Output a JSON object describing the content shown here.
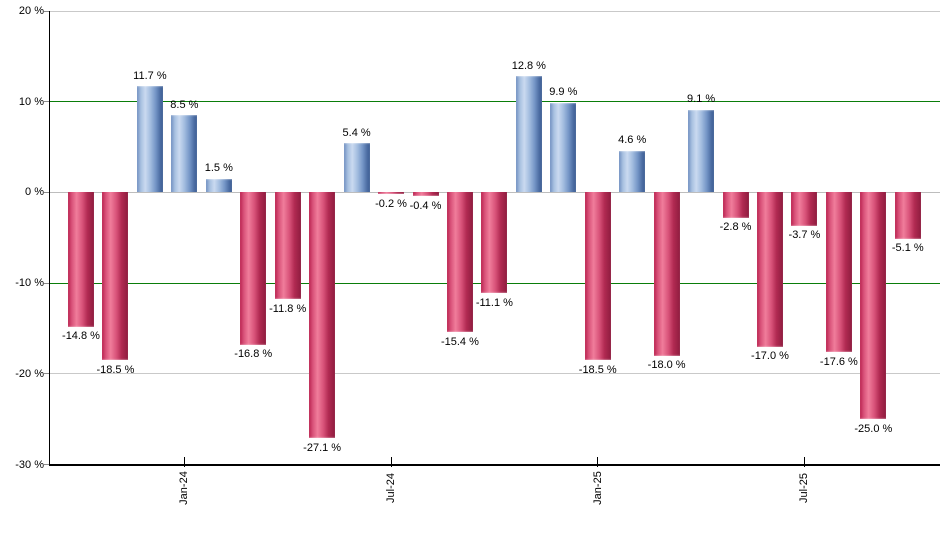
{
  "chart_data": {
    "type": "bar",
    "title": "",
    "xlabel": "",
    "ylabel": "",
    "ylim": [
      -30,
      20
    ],
    "grid": "horizontal",
    "legend_position": "none",
    "y_ticks": [
      {
        "value": 20,
        "label": "20 %",
        "line": "gray"
      },
      {
        "value": 10,
        "label": "10 %",
        "line": "green"
      },
      {
        "value": 0,
        "label": "0 %",
        "line": "zero"
      },
      {
        "value": -10,
        "label": "-10 %",
        "line": "green"
      },
      {
        "value": -20,
        "label": "-20 %",
        "line": "gray"
      },
      {
        "value": -30,
        "label": "-30 %",
        "line": "axis"
      }
    ],
    "x_ticks": [
      {
        "bar_index": 3,
        "label": "Jan-24"
      },
      {
        "bar_index": 9,
        "label": "Jul-24"
      },
      {
        "bar_index": 15,
        "label": "Jan-25"
      },
      {
        "bar_index": 21,
        "label": "Jul-25"
      }
    ],
    "bars": [
      {
        "value": -14.8,
        "label": "-14.8 %"
      },
      {
        "value": -18.5,
        "label": "-18.5 %"
      },
      {
        "value": 11.7,
        "label": "11.7 %"
      },
      {
        "value": 8.5,
        "label": "8.5 %"
      },
      {
        "value": 1.5,
        "label": "1.5 %"
      },
      {
        "value": -16.8,
        "label": "-16.8 %"
      },
      {
        "value": -11.8,
        "label": "-11.8 %"
      },
      {
        "value": -27.1,
        "label": "-27.1 %"
      },
      {
        "value": 5.4,
        "label": "5.4 %"
      },
      {
        "value": -0.2,
        "label": "-0.2 %"
      },
      {
        "value": -0.4,
        "label": "-0.4 %"
      },
      {
        "value": -15.4,
        "label": "-15.4 %"
      },
      {
        "value": -11.1,
        "label": "-11.1 %"
      },
      {
        "value": 12.8,
        "label": "12.8 %"
      },
      {
        "value": 9.9,
        "label": "9.9 %"
      },
      {
        "value": -18.5,
        "label": "-18.5 %"
      },
      {
        "value": 4.6,
        "label": "4.6 %"
      },
      {
        "value": -18.0,
        "label": "-18.0 %"
      },
      {
        "value": 9.1,
        "label": "9.1 %"
      },
      {
        "value": -2.8,
        "label": "-2.8 %"
      },
      {
        "value": -17.0,
        "label": "-17.0 %"
      },
      {
        "value": -3.7,
        "label": "-3.7 %"
      },
      {
        "value": -17.6,
        "label": "-17.6 %"
      },
      {
        "value": -25.0,
        "label": "-25.0 %"
      },
      {
        "value": -5.1,
        "label": "-5.1 %"
      }
    ],
    "colors": {
      "positive_bar": "#7495c6",
      "positive_bar_highlight": "#cadaf0",
      "positive_bar_edge": "#3f5f95",
      "negative_bar": "#c53a60",
      "negative_bar_highlight": "#f07d9b",
      "negative_bar_edge": "#8f1c3f",
      "gridline_green": "#0a7d0a",
      "gridline_gray": "#c9c9c9",
      "axis": "#000000",
      "background": "#ffffff"
    }
  }
}
